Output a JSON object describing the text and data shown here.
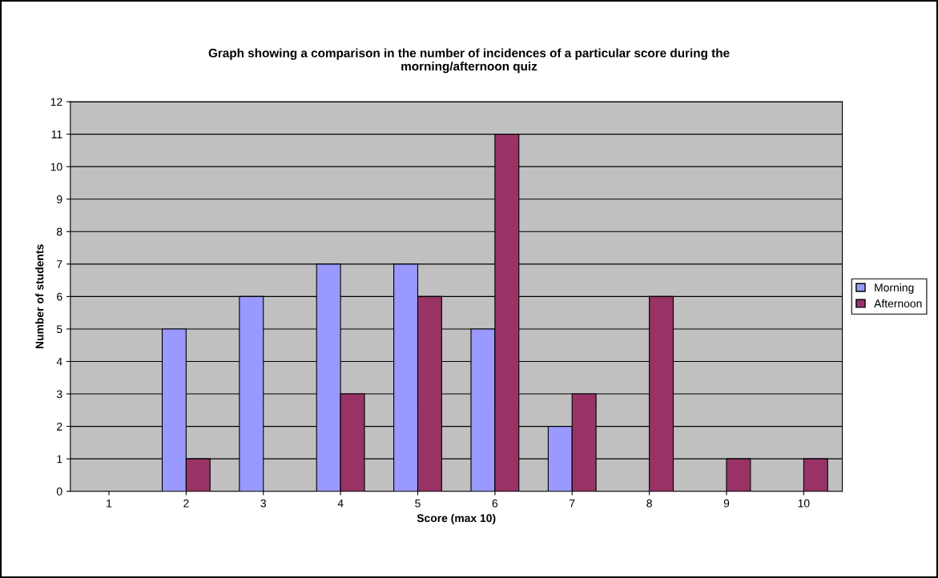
{
  "chart_data": {
    "type": "bar",
    "title": "Graph showing a comparison in the number of incidences of a particular score during the\nmorning/afternoon quiz",
    "xlabel": "Score (max 10)",
    "ylabel": "Number of students",
    "categories": [
      "1",
      "2",
      "3",
      "4",
      "5",
      "6",
      "7",
      "8",
      "9",
      "10"
    ],
    "series": [
      {
        "name": "Morning",
        "color": "#9999ff",
        "values": [
          0,
          5,
          6,
          7,
          7,
          5,
          2,
          0,
          0,
          0
        ]
      },
      {
        "name": "Afternoon",
        "color": "#993366",
        "values": [
          0,
          1,
          0,
          3,
          6,
          11,
          3,
          6,
          1,
          1
        ]
      }
    ],
    "ylim": [
      0,
      12
    ],
    "yticks": [
      0,
      1,
      2,
      3,
      4,
      5,
      6,
      7,
      8,
      9,
      10,
      11,
      12
    ],
    "grid": "y",
    "legend": "right"
  }
}
